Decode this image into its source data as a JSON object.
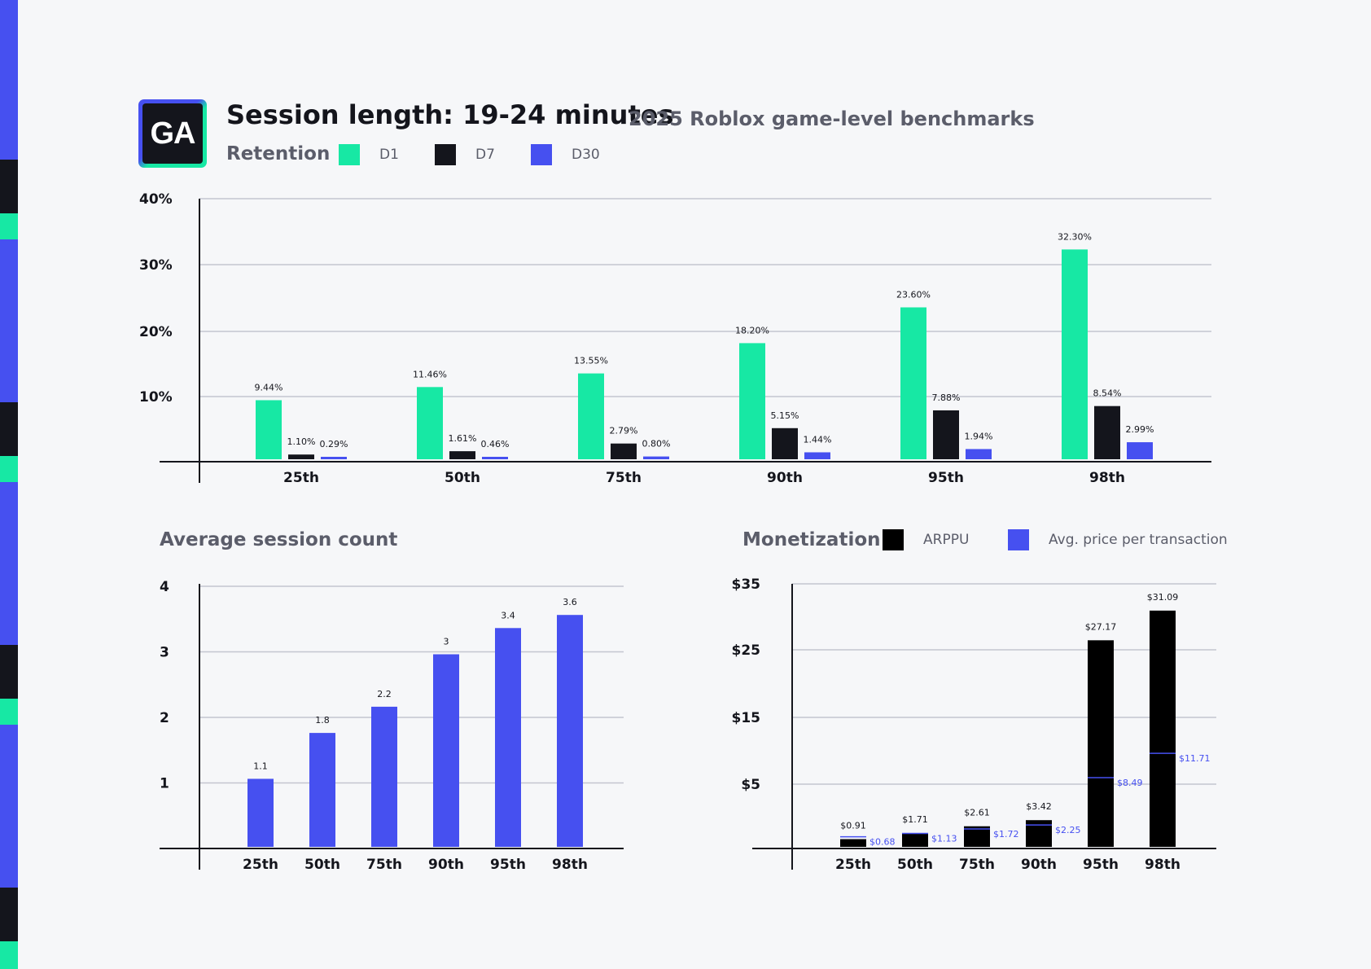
{
  "colors": {
    "d1": "#17e8a4",
    "d7": "#14151c",
    "d30": "#4650f0",
    "arppu": "#000000",
    "avg_price": "#4650f0",
    "grid": "#c3c6d0",
    "sidebar_blue": "#4650f0",
    "sidebar_dark": "#14151c",
    "sidebar_green": "#17e8a4"
  },
  "header": {
    "logo": "GA",
    "title": "Session length: 19-24 minutes",
    "subtitle": "2025 Roblox game-level benchmarks"
  },
  "retention": {
    "label": "Retention",
    "legend": [
      "D1",
      "D7",
      "D30"
    ]
  },
  "session_count": {
    "label": "Average session count"
  },
  "monetization": {
    "label": "Monetization",
    "legend": [
      "ARPPU",
      "Avg. price per transaction"
    ]
  },
  "chart_data": [
    {
      "type": "bar",
      "categories": [
        "25th",
        "50th",
        "75th",
        "90th",
        "95th",
        "98th"
      ],
      "yticks": [
        "10%",
        "20%",
        "30%",
        "40%"
      ],
      "series": [
        {
          "name": "D1",
          "values": [
            9.44,
            11.46,
            13.55,
            18.2,
            23.6,
            32.3
          ],
          "labels": [
            "9.44%",
            "11.46%",
            "13.55%",
            "18.20%",
            "23.60%",
            "32.30%"
          ]
        },
        {
          "name": "D7",
          "values": [
            1.1,
            1.61,
            2.79,
            5.15,
            7.88,
            8.54
          ],
          "labels": [
            "1.10%",
            "1.61%",
            "2.79%",
            "5.15%",
            "7.88%",
            "8.54%"
          ]
        },
        {
          "name": "D30",
          "values": [
            0.29,
            0.46,
            0.8,
            1.44,
            1.94,
            2.99
          ],
          "labels": [
            "0.29%",
            "0.46%",
            "0.80%",
            "1.44%",
            "1.94%",
            "2.99%"
          ]
        }
      ]
    },
    {
      "type": "bar",
      "categories": [
        "25th",
        "50th",
        "75th",
        "90th",
        "95th",
        "98th"
      ],
      "yticks": [
        "1",
        "2",
        "3",
        "4"
      ],
      "values": [
        1.1,
        1.8,
        2.2,
        3,
        3.4,
        3.6
      ],
      "labels": [
        "1.1",
        "1.8",
        "2.2",
        "3",
        "3.4",
        "3.6"
      ]
    },
    {
      "type": "bar",
      "categories": [
        "25th",
        "50th",
        "75th",
        "90th",
        "95th",
        "98th"
      ],
      "yticks": [
        "$5",
        "$15",
        "$25",
        "$35"
      ],
      "series": [
        {
          "name": "ARPPU",
          "values": [
            0.91,
            1.71,
            2.61,
            3.42,
            27.17,
            31.09
          ],
          "labels": [
            "$0.91",
            "$1.71",
            "$2.61",
            "$3.42",
            "$27.17",
            "$31.09"
          ]
        },
        {
          "name": "Avg. price per transaction",
          "values": [
            0.68,
            1.13,
            1.72,
            2.25,
            8.49,
            11.71
          ],
          "labels": [
            "$0.68",
            "$1.13",
            "$1.72",
            "$2.25",
            "$8.49",
            "$11.71"
          ]
        }
      ]
    }
  ]
}
